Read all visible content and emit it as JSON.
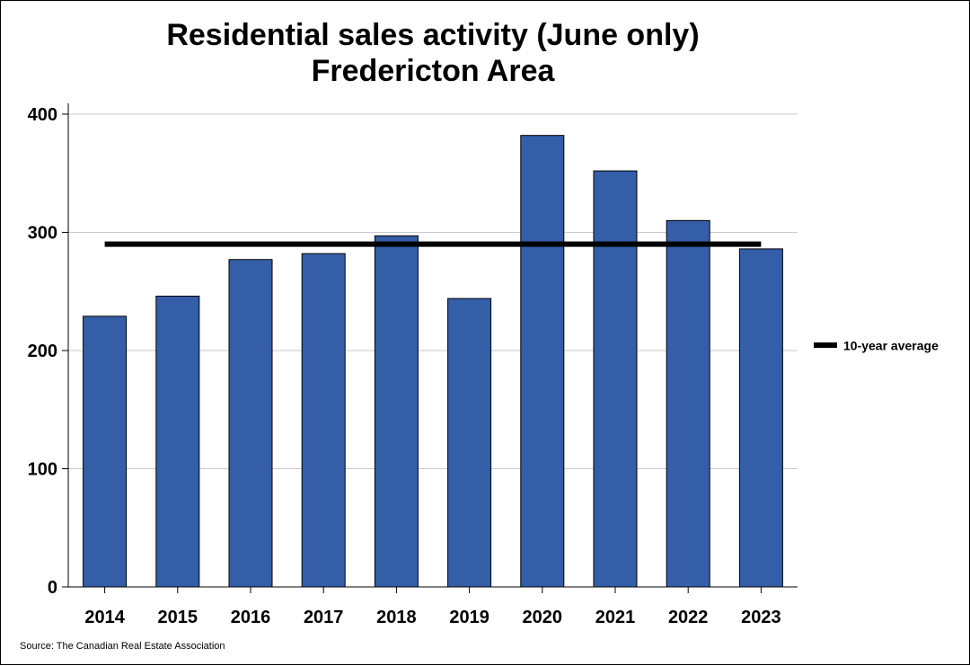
{
  "chart_data": {
    "type": "bar",
    "title": "Residential sales activity (June only)",
    "subtitle": "Fredericton Area",
    "categories": [
      "2014",
      "2015",
      "2016",
      "2017",
      "2018",
      "2019",
      "2020",
      "2021",
      "2022",
      "2023"
    ],
    "series": [
      {
        "name": "",
        "values": [
          229,
          246,
          277,
          282,
          297,
          244,
          382,
          352,
          310,
          286
        ],
        "color": "#355EA9"
      }
    ],
    "reference_line": {
      "name": "10-year average",
      "value": 290,
      "color": "#000000"
    },
    "ylim": [
      0,
      400
    ],
    "yticks": [
      0,
      100,
      200,
      300,
      400
    ],
    "ytick_labels": [
      "0",
      "100",
      "200",
      "300",
      "400"
    ],
    "xlabel": "",
    "ylabel": "",
    "grid": true,
    "legend_position": "right",
    "source": "Source: The Canadian Real Estate Association"
  }
}
